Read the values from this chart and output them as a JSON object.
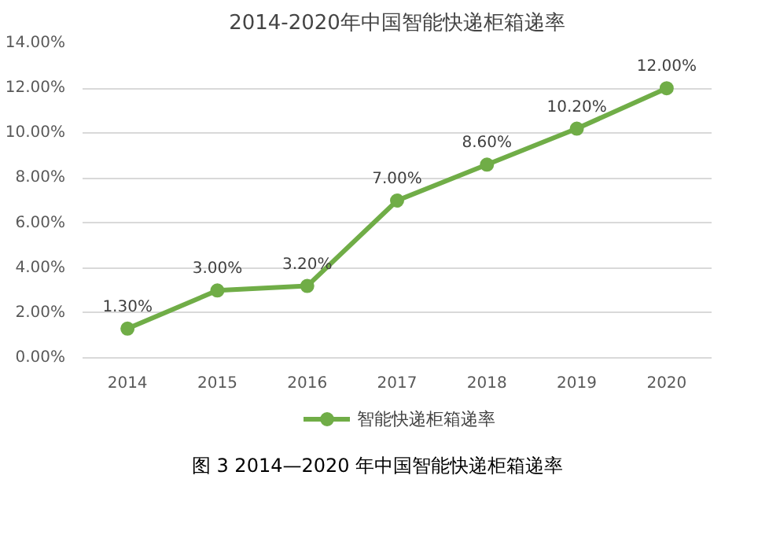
{
  "chart_data": {
    "type": "line",
    "title": "2014-2020年中国智能快递柜箱递率",
    "categories": [
      "2014",
      "2015",
      "2016",
      "2017",
      "2018",
      "2019",
      "2020"
    ],
    "series": [
      {
        "name": "智能快递柜箱递率",
        "color": "#70ad47",
        "values": [
          1.3,
          3.0,
          3.2,
          7.0,
          8.6,
          10.2,
          12.0
        ]
      }
    ],
    "value_labels": [
      "1.30%",
      "3.00%",
      "3.20%",
      "7.00%",
      "8.60%",
      "10.20%",
      "12.00%"
    ],
    "ylim": [
      0,
      14
    ],
    "yticks": [
      {
        "value": 0,
        "label": "0.00%"
      },
      {
        "value": 2,
        "label": "2.00%"
      },
      {
        "value": 4,
        "label": "4.00%"
      },
      {
        "value": 6,
        "label": "6.00%"
      },
      {
        "value": 8,
        "label": "8.00%"
      },
      {
        "value": 10,
        "label": "10.00%"
      },
      {
        "value": 12,
        "label": "12.00%"
      },
      {
        "value": 14,
        "label": "14.00%"
      }
    ],
    "grid": "y",
    "legend": "bottom",
    "marker": "circle",
    "line_style": "solid",
    "annotations": [
      "图 3 2014—2020 年中国智能快递柜箱递率"
    ]
  }
}
